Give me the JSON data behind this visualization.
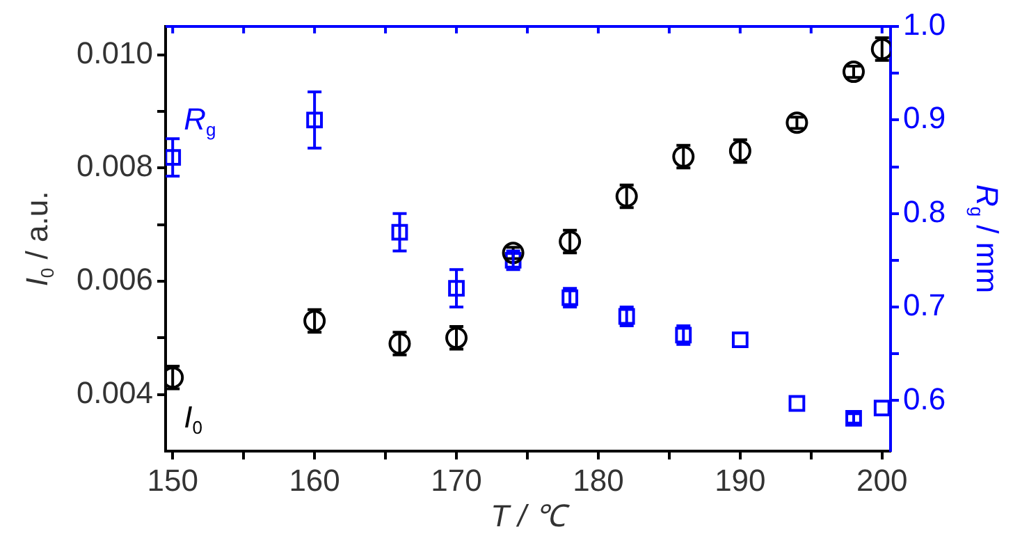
{
  "chart_data": {
    "type": "scatter",
    "xlabel": "T / ℃",
    "ylabel": "I$_{0}$ / a.u.",
    "y2label": "R$_{g}$ / mm",
    "x": [
      150,
      160,
      166,
      170,
      174,
      178,
      182,
      186,
      190,
      194,
      198,
      200
    ],
    "series": [
      {
        "name": "I$_{0}$",
        "color": "#000000",
        "marker": "circle",
        "axis": "y",
        "values": [
          0.0043,
          0.0053,
          0.0049,
          0.005,
          0.0065,
          0.0067,
          0.0075,
          0.0082,
          0.0083,
          0.0088,
          0.0097,
          0.0101
        ],
        "errors": [
          0.0002,
          0.0002,
          0.0002,
          0.0002,
          0.0001,
          0.0002,
          0.0002,
          0.0002,
          0.0002,
          0.0001,
          0.0001,
          0.0002
        ]
      },
      {
        "name": "R$_{g}$",
        "color": "#0000ff",
        "marker": "square",
        "axis": "y2",
        "values": [
          0.86,
          0.9,
          0.78,
          0.72,
          0.75,
          0.71,
          0.69,
          0.67,
          0.665,
          0.597,
          0.581,
          0.592
        ],
        "errors": [
          0.02,
          0.03,
          0.02,
          0.02,
          0.01,
          0.01,
          0.01,
          0.01,
          null,
          null,
          0.005,
          null
        ]
      }
    ],
    "xlim": [
      149.5,
      200.6
    ],
    "xticks": [
      150,
      {
        "value": 155,
        "label": null
      },
      160,
      {
        "value": 165,
        "label": null
      },
      170,
      {
        "value": 175,
        "label": null
      },
      180,
      {
        "value": 185,
        "label": null
      },
      190,
      {
        "value": 195,
        "label": null
      },
      200
    ],
    "ylim": [
      0.003,
      0.0105
    ],
    "yticks": [
      0.004,
      {
        "value": 0.005,
        "label": null
      },
      0.006,
      {
        "value": 0.007,
        "label": null
      },
      0.008,
      {
        "value": 0.009,
        "label": null
      },
      {
        "value": 0.01,
        "label": "0.010"
      }
    ],
    "y2lim": [
      0.546,
      1.0
    ],
    "y2ticks": [
      0.6,
      {
        "value": 0.65,
        "label": null
      },
      0.7,
      {
        "value": 0.75,
        "label": null
      },
      0.8,
      {
        "value": 0.85,
        "label": null
      },
      0.9,
      {
        "value": 0.95,
        "label": null
      },
      {
        "value": 1,
        "label": "1.0"
      }
    ],
    "grid": false,
    "legend": false
  }
}
